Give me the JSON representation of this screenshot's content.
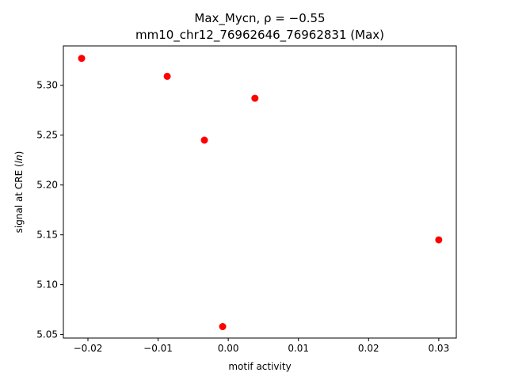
{
  "chart_data": {
    "type": "scatter",
    "title_line1": "Max_Mycn, ρ = −0.55",
    "title_line2": "mm10_chr12_76962646_76962831 (Max)",
    "xlabel": "motif activity",
    "ylabel": "signal at CRE (ln)",
    "xlim": [
      -0.0235,
      0.0325
    ],
    "ylim": [
      5.0465,
      5.3395
    ],
    "xticks": [
      -0.02,
      -0.01,
      0.0,
      0.01,
      0.02,
      0.03
    ],
    "xtick_labels": [
      "−0.02",
      "−0.01",
      "0.00",
      "0.01",
      "0.02",
      "0.03"
    ],
    "yticks": [
      5.05,
      5.1,
      5.15,
      5.2,
      5.25,
      5.3
    ],
    "ytick_labels": [
      "5.05",
      "5.10",
      "5.15",
      "5.20",
      "5.25",
      "5.30"
    ],
    "grid": false,
    "marker_color": "#ff0000",
    "points": [
      {
        "x": -0.0209,
        "y": 5.327
      },
      {
        "x": -0.0087,
        "y": 5.309
      },
      {
        "x": 0.0038,
        "y": 5.287
      },
      {
        "x": -0.0034,
        "y": 5.245
      },
      {
        "x": 0.03,
        "y": 5.145
      },
      {
        "x": -0.0008,
        "y": 5.058
      }
    ]
  }
}
